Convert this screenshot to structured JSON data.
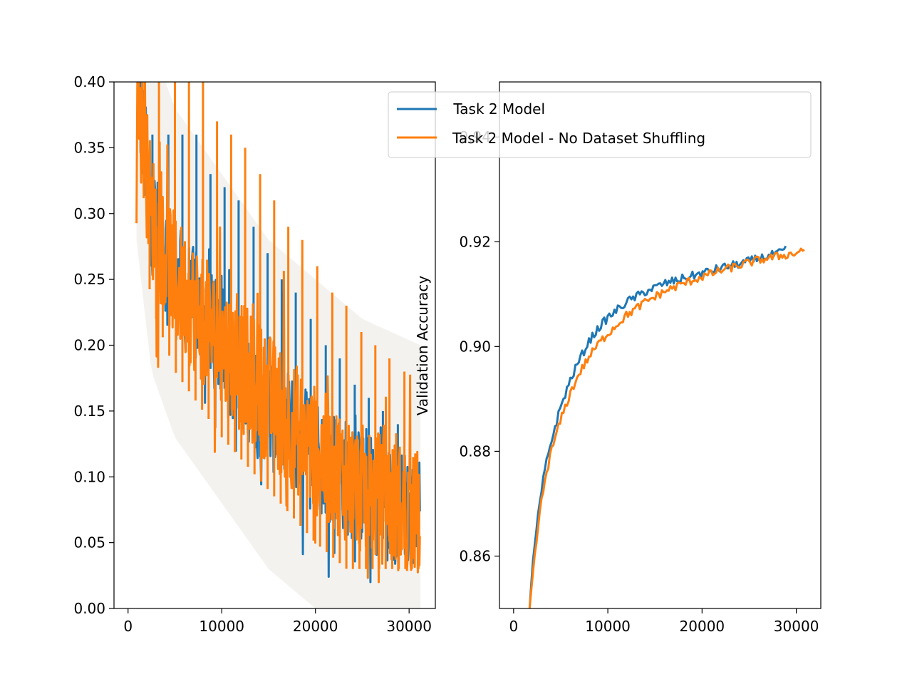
{
  "chart_data": [
    {
      "type": "line",
      "title": "",
      "xlabel": "",
      "ylabel": "",
      "xlim": [
        -1500,
        32800
      ],
      "ylim": [
        0.0,
        0.4
      ],
      "xticks": [
        0,
        10000,
        20000,
        30000
      ],
      "xtick_labels": [
        "0",
        "10000",
        "20000",
        "30000"
      ],
      "yticks": [
        0.0,
        0.05,
        0.1,
        0.15,
        0.2,
        0.25,
        0.3,
        0.35,
        0.4
      ],
      "ytick_labels": [
        "0.00",
        "0.05",
        "0.10",
        "0.15",
        "0.20",
        "0.25",
        "0.30",
        "0.35",
        "0.40"
      ],
      "grid": false,
      "series": [
        {
          "name": "Task 2 Model",
          "color": "#1f77b4",
          "x_range": [
            900,
            31200
          ],
          "trend": [
            [
              900,
              0.4
            ],
            [
              2500,
              0.3
            ],
            [
              5000,
              0.25
            ],
            [
              10000,
              0.2
            ],
            [
              15000,
              0.15
            ],
            [
              20000,
              0.12
            ],
            [
              25000,
              0.09
            ],
            [
              31200,
              0.07
            ]
          ],
          "band": "noisy per-step training loss with periodic spikes, light shaded spread"
        },
        {
          "name": "Task 2 Model - No Dataset Shuffling",
          "color": "#ff7f0e",
          "x_range": [
            900,
            31200
          ],
          "trend": [
            [
              900,
              0.4
            ],
            [
              2500,
              0.3
            ],
            [
              5000,
              0.25
            ],
            [
              10000,
              0.2
            ],
            [
              15000,
              0.16
            ],
            [
              20000,
              0.12
            ],
            [
              25000,
              0.09
            ],
            [
              31200,
              0.07
            ]
          ],
          "spike_peaks": [
            [
              3300,
              0.4
            ],
            [
              5000,
              0.4
            ],
            [
              6500,
              0.4
            ],
            [
              8000,
              0.4
            ],
            [
              9500,
              0.37
            ],
            [
              11000,
              0.36
            ],
            [
              12500,
              0.35
            ],
            [
              14100,
              0.33
            ],
            [
              15600,
              0.31
            ],
            [
              17100,
              0.29
            ],
            [
              18600,
              0.28
            ],
            [
              20200,
              0.26
            ],
            [
              21800,
              0.24
            ],
            [
              23300,
              0.23
            ],
            [
              24900,
              0.21
            ],
            [
              26400,
              0.2
            ],
            [
              27900,
              0.19
            ],
            [
              29500,
              0.18
            ]
          ],
          "band": "noisy per-step training loss with periodic spikes, light shaded spread"
        }
      ]
    },
    {
      "type": "line",
      "title": "",
      "xlabel": "",
      "ylabel": "Validation Accuracy",
      "xlim": [
        -1500,
        32600
      ],
      "ylim": [
        0.85,
        0.9505
      ],
      "xticks": [
        0,
        10000,
        20000,
        30000
      ],
      "xtick_labels": [
        "0",
        "10000",
        "20000",
        "30000"
      ],
      "yticks": [
        0.86,
        0.88,
        0.9,
        0.92,
        0.94
      ],
      "ytick_labels": [
        "0.86",
        "0.88",
        "0.90",
        "0.92",
        "0.94"
      ],
      "grid": false,
      "series": [
        {
          "name": "Task 2 Model",
          "color": "#1f77b4",
          "x": [
            1700,
            2000,
            2500,
            3000,
            3500,
            4000,
            5000,
            6000,
            7000,
            8000,
            9000,
            10000,
            12000,
            14000,
            16000,
            18000,
            20000,
            22000,
            24000,
            26000,
            28000,
            29000
          ],
          "y": [
            0.85,
            0.858,
            0.866,
            0.873,
            0.878,
            0.882,
            0.8885,
            0.8935,
            0.8975,
            0.901,
            0.9035,
            0.9055,
            0.9085,
            0.9105,
            0.912,
            0.913,
            0.914,
            0.915,
            0.9158,
            0.9168,
            0.9177,
            0.9185
          ]
        },
        {
          "name": "Task 2 Model - No Dataset Shuffling",
          "color": "#ff7f0e",
          "x": [
            1700,
            2000,
            2500,
            3000,
            3500,
            4000,
            5000,
            6000,
            7000,
            8000,
            9000,
            10000,
            12000,
            14000,
            16000,
            18000,
            20000,
            22000,
            24000,
            26000,
            28000,
            30000,
            31000
          ],
          "y": [
            0.85,
            0.856,
            0.864,
            0.871,
            0.876,
            0.88,
            0.886,
            0.891,
            0.895,
            0.898,
            0.9005,
            0.9025,
            0.906,
            0.9085,
            0.9105,
            0.912,
            0.9133,
            0.9145,
            0.9155,
            0.9165,
            0.9172,
            0.9178,
            0.919
          ]
        }
      ]
    }
  ],
  "legend": {
    "placement": "top-right",
    "entries": [
      {
        "label": " Task 2 Model",
        "color": "#1f77b4"
      },
      {
        "label": "Task 2 Model - No Dataset Shuffling",
        "color": "#ff7f0e"
      }
    ]
  }
}
